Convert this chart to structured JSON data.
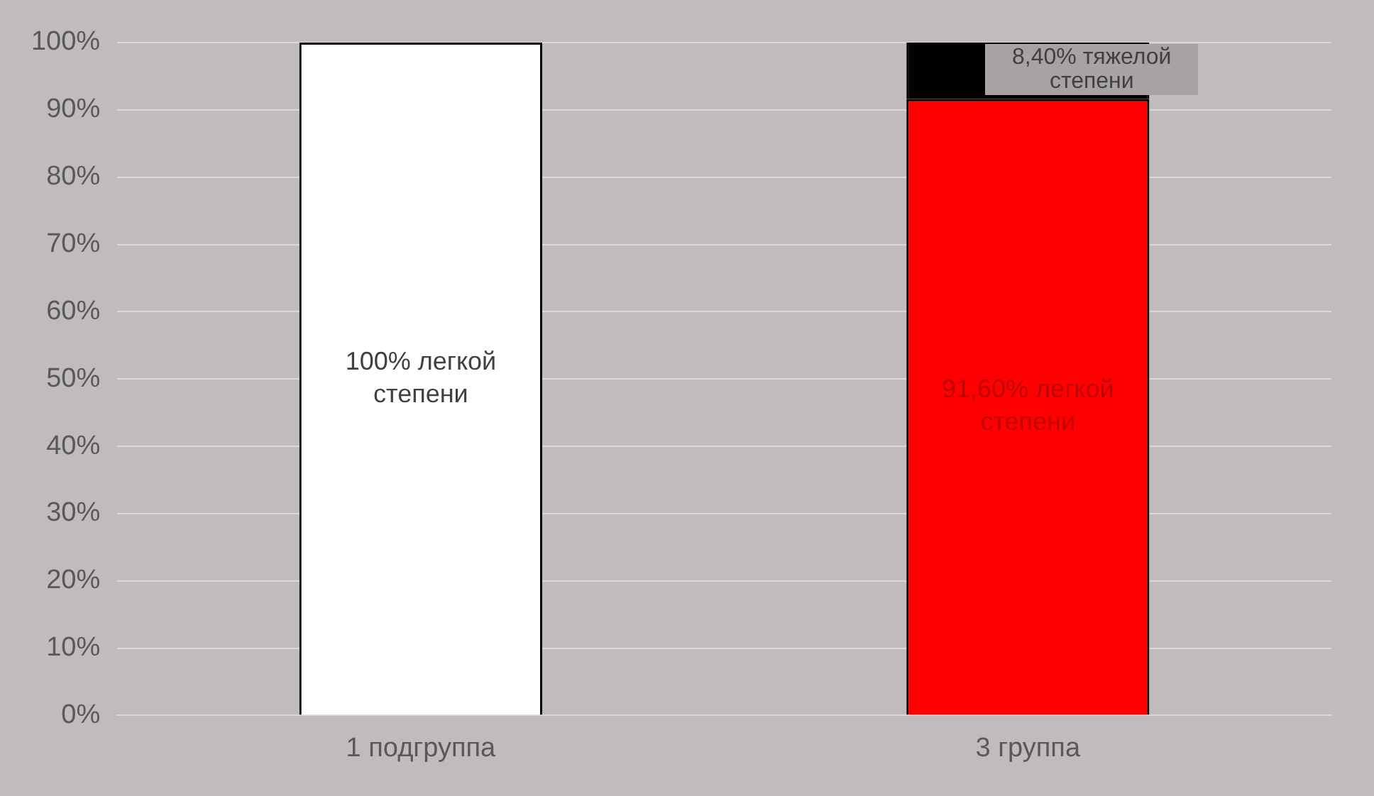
{
  "chart_data": {
    "type": "bar",
    "stacked": true,
    "categories": [
      "1 подгруппа",
      "3 группа"
    ],
    "series": [
      {
        "colors": [
          "#ffffff",
          "#ff0000"
        ],
        "values": [
          100,
          91.6
        ],
        "value_labels": [
          "100% легкой степени",
          "91,60% легкой степени"
        ]
      },
      {
        "color": "#000000",
        "values": [
          null,
          8.4
        ],
        "value_labels": [
          null,
          "8,40% тяжелой степени"
        ]
      }
    ],
    "ylim": [
      0,
      100
    ],
    "yticks": [
      {
        "value": 0,
        "label": "0%"
      },
      {
        "value": 10,
        "label": "10%"
      },
      {
        "value": 20,
        "label": "20%"
      },
      {
        "value": 30,
        "label": "30%"
      },
      {
        "value": 40,
        "label": "40%"
      },
      {
        "value": 50,
        "label": "50%"
      },
      {
        "value": 60,
        "label": "60%"
      },
      {
        "value": 70,
        "label": "70%"
      },
      {
        "value": 80,
        "label": "80%"
      },
      {
        "value": 90,
        "label": "90%"
      },
      {
        "value": 100,
        "label": "100%"
      }
    ],
    "grid": "y",
    "legend": false
  }
}
